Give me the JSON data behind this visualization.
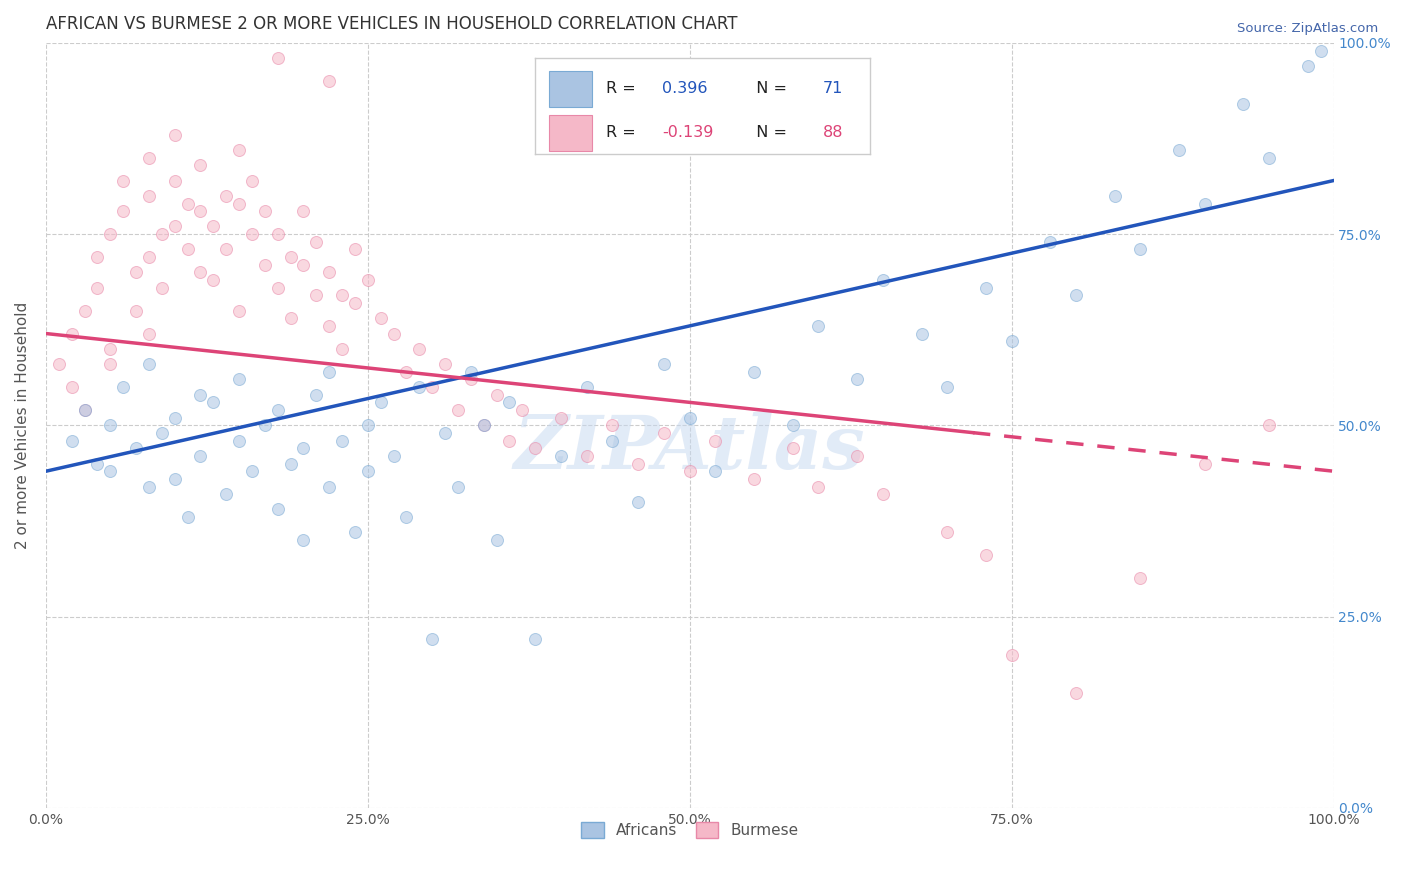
{
  "title": "AFRICAN VS BURMESE 2 OR MORE VEHICLES IN HOUSEHOLD CORRELATION CHART",
  "source": "Source: ZipAtlas.com",
  "ylabel": "2 or more Vehicles in Household",
  "xlim": [
    0,
    1
  ],
  "ylim": [
    0,
    1
  ],
  "ytick_values": [
    0.0,
    0.25,
    0.5,
    0.75,
    1.0
  ],
  "xtick_values": [
    0.0,
    0.25,
    0.5,
    0.75,
    1.0
  ],
  "africans_color": "#aac4e2",
  "africans_edge_color": "#7aaad4",
  "burmese_color": "#f5b8c8",
  "burmese_edge_color": "#e888a8",
  "africans_R": 0.396,
  "africans_N": 71,
  "burmese_R": -0.139,
  "burmese_N": 88,
  "trend_blue": "#2255bb",
  "trend_pink": "#dd4477",
  "legend_africans": "Africans",
  "legend_burmese": "Burmese",
  "watermark": "ZIPAtlas",
  "background_color": "#ffffff",
  "grid_color": "#cccccc",
  "title_color": "#333333",
  "source_color": "#4466aa",
  "right_axis_color": "#4488cc",
  "axis_label_color": "#555555",
  "marker_size": 75,
  "marker_alpha": 0.55,
  "seed": 42,
  "africans_x": [
    0.02,
    0.03,
    0.04,
    0.05,
    0.05,
    0.06,
    0.07,
    0.08,
    0.08,
    0.09,
    0.1,
    0.1,
    0.11,
    0.12,
    0.12,
    0.13,
    0.14,
    0.15,
    0.15,
    0.16,
    0.17,
    0.18,
    0.18,
    0.19,
    0.2,
    0.2,
    0.21,
    0.22,
    0.22,
    0.23,
    0.24,
    0.25,
    0.25,
    0.26,
    0.27,
    0.28,
    0.29,
    0.3,
    0.31,
    0.32,
    0.33,
    0.34,
    0.35,
    0.36,
    0.38,
    0.4,
    0.42,
    0.44,
    0.46,
    0.48,
    0.5,
    0.52,
    0.55,
    0.58,
    0.6,
    0.63,
    0.65,
    0.68,
    0.7,
    0.73,
    0.75,
    0.78,
    0.8,
    0.83,
    0.85,
    0.88,
    0.9,
    0.93,
    0.95,
    0.98,
    0.99
  ],
  "africans_y": [
    0.48,
    0.52,
    0.45,
    0.5,
    0.44,
    0.55,
    0.47,
    0.42,
    0.58,
    0.49,
    0.51,
    0.43,
    0.38,
    0.54,
    0.46,
    0.53,
    0.41,
    0.56,
    0.48,
    0.44,
    0.5,
    0.39,
    0.52,
    0.45,
    0.47,
    0.35,
    0.54,
    0.42,
    0.57,
    0.48,
    0.36,
    0.5,
    0.44,
    0.53,
    0.46,
    0.38,
    0.55,
    0.22,
    0.49,
    0.42,
    0.57,
    0.5,
    0.35,
    0.53,
    0.22,
    0.46,
    0.55,
    0.48,
    0.4,
    0.58,
    0.51,
    0.44,
    0.57,
    0.5,
    0.63,
    0.56,
    0.69,
    0.62,
    0.55,
    0.68,
    0.61,
    0.74,
    0.67,
    0.8,
    0.73,
    0.86,
    0.79,
    0.92,
    0.85,
    0.97,
    0.99
  ],
  "burmese_x": [
    0.01,
    0.02,
    0.02,
    0.03,
    0.03,
    0.04,
    0.04,
    0.05,
    0.05,
    0.05,
    0.06,
    0.06,
    0.07,
    0.07,
    0.08,
    0.08,
    0.08,
    0.09,
    0.09,
    0.1,
    0.1,
    0.1,
    0.11,
    0.11,
    0.12,
    0.12,
    0.12,
    0.13,
    0.13,
    0.14,
    0.14,
    0.15,
    0.15,
    0.15,
    0.16,
    0.16,
    0.17,
    0.17,
    0.18,
    0.18,
    0.19,
    0.19,
    0.2,
    0.2,
    0.21,
    0.21,
    0.22,
    0.22,
    0.23,
    0.23,
    0.24,
    0.24,
    0.25,
    0.26,
    0.27,
    0.28,
    0.29,
    0.3,
    0.31,
    0.32,
    0.33,
    0.34,
    0.35,
    0.36,
    0.37,
    0.38,
    0.4,
    0.42,
    0.44,
    0.46,
    0.48,
    0.5,
    0.52,
    0.55,
    0.58,
    0.6,
    0.63,
    0.65,
    0.7,
    0.73,
    0.75,
    0.8,
    0.85,
    0.9,
    0.95,
    0.18,
    0.22,
    0.08
  ],
  "burmese_y": [
    0.58,
    0.62,
    0.55,
    0.65,
    0.52,
    0.68,
    0.72,
    0.6,
    0.75,
    0.58,
    0.82,
    0.78,
    0.7,
    0.65,
    0.85,
    0.8,
    0.72,
    0.75,
    0.68,
    0.88,
    0.82,
    0.76,
    0.79,
    0.73,
    0.84,
    0.78,
    0.7,
    0.76,
    0.69,
    0.8,
    0.73,
    0.86,
    0.79,
    0.65,
    0.82,
    0.75,
    0.78,
    0.71,
    0.75,
    0.68,
    0.72,
    0.64,
    0.78,
    0.71,
    0.74,
    0.67,
    0.7,
    0.63,
    0.67,
    0.6,
    0.73,
    0.66,
    0.69,
    0.64,
    0.62,
    0.57,
    0.6,
    0.55,
    0.58,
    0.52,
    0.56,
    0.5,
    0.54,
    0.48,
    0.52,
    0.47,
    0.51,
    0.46,
    0.5,
    0.45,
    0.49,
    0.44,
    0.48,
    0.43,
    0.47,
    0.42,
    0.46,
    0.41,
    0.36,
    0.33,
    0.2,
    0.15,
    0.3,
    0.45,
    0.5,
    0.98,
    0.95,
    0.62
  ]
}
